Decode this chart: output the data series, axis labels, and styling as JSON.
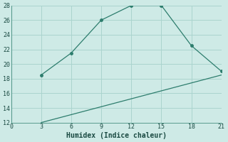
{
  "line1_x": [
    3,
    6,
    9,
    12,
    15,
    18,
    21
  ],
  "line1_y": [
    18.5,
    21.5,
    26,
    28,
    28,
    22.5,
    19
  ],
  "line2_x": [
    3,
    21
  ],
  "line2_y": [
    12,
    18.5
  ],
  "line_color": "#2d7d6d",
  "bg_color": "#ceeae6",
  "grid_color": "#aad4ce",
  "xlabel": "Humidex (Indice chaleur)",
  "xlabel_fontsize": 7,
  "tick_fontsize": 6,
  "xlim": [
    0,
    21
  ],
  "ylim": [
    12,
    28
  ],
  "xticks": [
    0,
    3,
    6,
    9,
    12,
    15,
    18,
    21
  ],
  "yticks": [
    12,
    14,
    16,
    18,
    20,
    22,
    24,
    26,
    28
  ]
}
